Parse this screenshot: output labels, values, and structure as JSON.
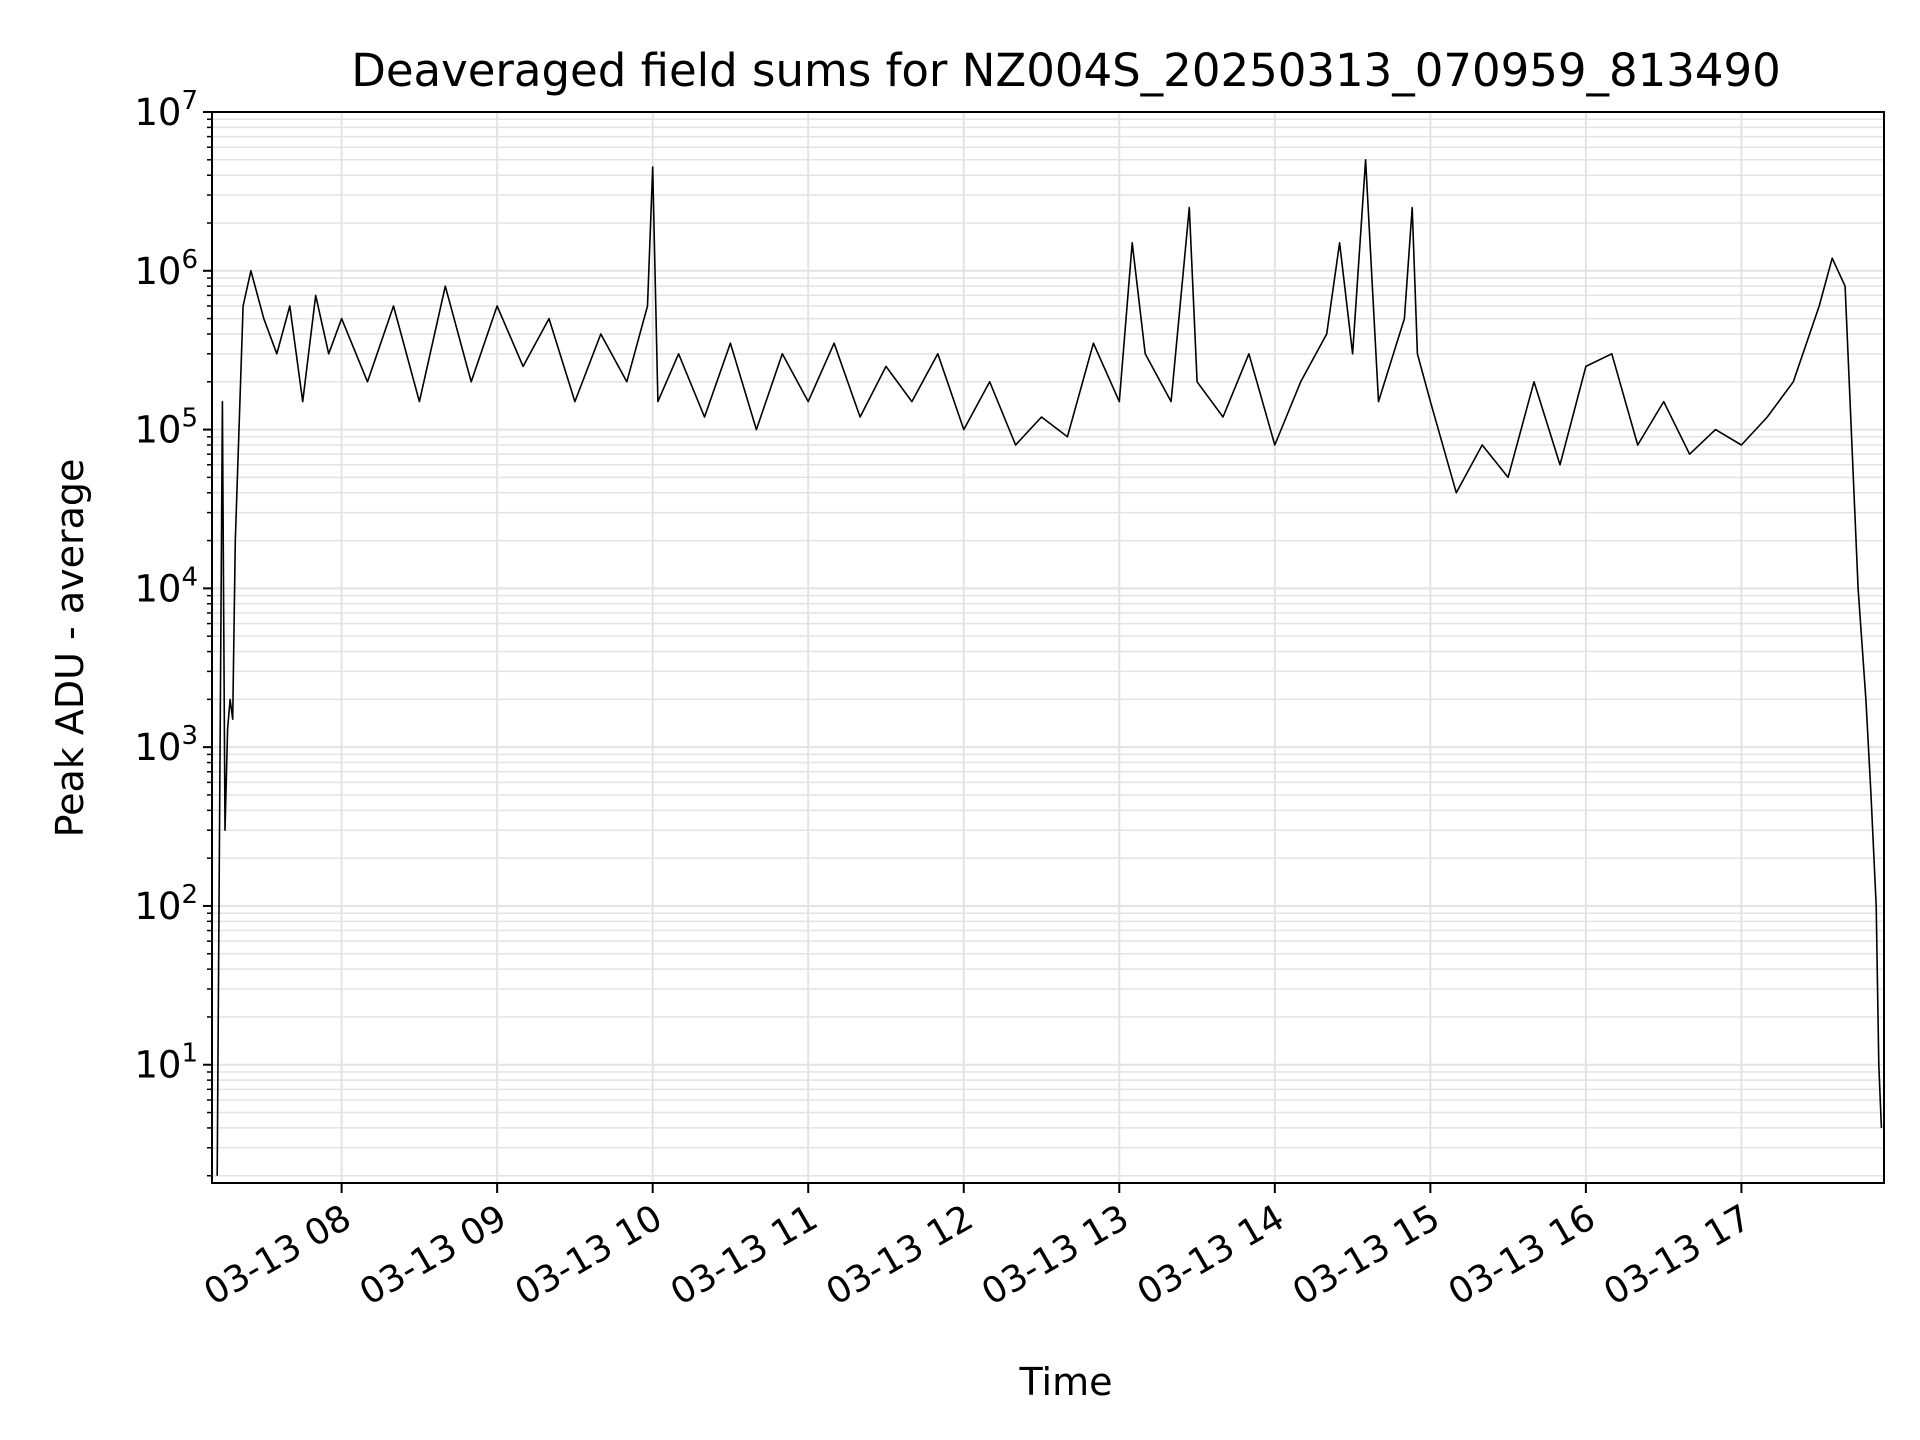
{
  "chart_data": {
    "type": "line",
    "title": "Deaveraged field sums for NZ004S_20250313_070959_813490",
    "xlabel": "Time",
    "ylabel": "Peak ADU - average",
    "y_scale": "log",
    "ylim": [
      1.8,
      10000000
    ],
    "y_tick_labels": [
      {
        "value": 10,
        "base": "10",
        "exp": "1"
      },
      {
        "value": 100,
        "base": "10",
        "exp": "2"
      },
      {
        "value": 1000,
        "base": "10",
        "exp": "3"
      },
      {
        "value": 10000,
        "base": "10",
        "exp": "4"
      },
      {
        "value": 100000,
        "base": "10",
        "exp": "5"
      },
      {
        "value": 1000000,
        "base": "10",
        "exp": "6"
      },
      {
        "value": 10000000,
        "base": "10",
        "exp": "7"
      }
    ],
    "xlim": [
      "2025-03-13 07:10",
      "2025-03-13 17:55"
    ],
    "x_ticks": [
      {
        "value": "2025-03-13 08:00",
        "label": "03-13 08"
      },
      {
        "value": "2025-03-13 09:00",
        "label": "03-13 09"
      },
      {
        "value": "2025-03-13 10:00",
        "label": "03-13 10"
      },
      {
        "value": "2025-03-13 11:00",
        "label": "03-13 11"
      },
      {
        "value": "2025-03-13 12:00",
        "label": "03-13 12"
      },
      {
        "value": "2025-03-13 13:00",
        "label": "03-13 13"
      },
      {
        "value": "2025-03-13 14:00",
        "label": "03-13 14"
      },
      {
        "value": "2025-03-13 15:00",
        "label": "03-13 15"
      },
      {
        "value": "2025-03-13 16:00",
        "label": "03-13 16"
      },
      {
        "value": "2025-03-13 17:00",
        "label": "03-13 17"
      }
    ],
    "grid": true,
    "line_color": "#000000",
    "grid_color": "#e3e3e3",
    "series": [
      {
        "x": [
          "2025-03-13 07:12",
          "2025-03-13 07:14",
          "2025-03-13 07:15",
          "2025-03-13 07:16",
          "2025-03-13 07:17",
          "2025-03-13 07:18",
          "2025-03-13 07:19",
          "2025-03-13 07:22",
          "2025-03-13 07:25",
          "2025-03-13 07:30",
          "2025-03-13 07:35",
          "2025-03-13 07:40",
          "2025-03-13 07:45",
          "2025-03-13 07:50",
          "2025-03-13 07:55",
          "2025-03-13 08:00",
          "2025-03-13 08:10",
          "2025-03-13 08:20",
          "2025-03-13 08:30",
          "2025-03-13 08:40",
          "2025-03-13 08:50",
          "2025-03-13 09:00",
          "2025-03-13 09:10",
          "2025-03-13 09:20",
          "2025-03-13 09:30",
          "2025-03-13 09:40",
          "2025-03-13 09:50",
          "2025-03-13 09:58",
          "2025-03-13 10:00",
          "2025-03-13 10:02",
          "2025-03-13 10:10",
          "2025-03-13 10:20",
          "2025-03-13 10:30",
          "2025-03-13 10:40",
          "2025-03-13 10:50",
          "2025-03-13 11:00",
          "2025-03-13 11:10",
          "2025-03-13 11:20",
          "2025-03-13 11:30",
          "2025-03-13 11:40",
          "2025-03-13 11:50",
          "2025-03-13 12:00",
          "2025-03-13 12:10",
          "2025-03-13 12:20",
          "2025-03-13 12:30",
          "2025-03-13 12:40",
          "2025-03-13 12:50",
          "2025-03-13 13:00",
          "2025-03-13 13:05",
          "2025-03-13 13:10",
          "2025-03-13 13:20",
          "2025-03-13 13:27",
          "2025-03-13 13:30",
          "2025-03-13 13:40",
          "2025-03-13 13:50",
          "2025-03-13 14:00",
          "2025-03-13 14:10",
          "2025-03-13 14:20",
          "2025-03-13 14:25",
          "2025-03-13 14:30",
          "2025-03-13 14:35",
          "2025-03-13 14:40",
          "2025-03-13 14:50",
          "2025-03-13 14:53",
          "2025-03-13 14:55",
          "2025-03-13 15:00",
          "2025-03-13 15:10",
          "2025-03-13 15:20",
          "2025-03-13 15:30",
          "2025-03-13 15:40",
          "2025-03-13 15:50",
          "2025-03-13 16:00",
          "2025-03-13 16:10",
          "2025-03-13 16:20",
          "2025-03-13 16:30",
          "2025-03-13 16:40",
          "2025-03-13 16:50",
          "2025-03-13 17:00",
          "2025-03-13 17:10",
          "2025-03-13 17:20",
          "2025-03-13 17:30",
          "2025-03-13 17:35",
          "2025-03-13 17:40",
          "2025-03-13 17:45",
          "2025-03-13 17:48",
          "2025-03-13 17:50",
          "2025-03-13 17:52",
          "2025-03-13 17:53",
          "2025-03-13 17:54"
        ],
        "y": [
          2,
          150000,
          300,
          1300,
          2000,
          1500,
          20000,
          600000,
          1000000,
          500000,
          300000,
          600000,
          150000,
          700000,
          300000,
          500000,
          200000,
          600000,
          150000,
          800000,
          200000,
          600000,
          250000,
          500000,
          150000,
          400000,
          200000,
          600000,
          4500000,
          150000,
          300000,
          120000,
          350000,
          100000,
          300000,
          150000,
          350000,
          120000,
          250000,
          150000,
          300000,
          100000,
          200000,
          80000,
          120000,
          90000,
          350000,
          150000,
          1500000,
          300000,
          150000,
          2500000,
          200000,
          120000,
          300000,
          80000,
          200000,
          400000,
          1500000,
          300000,
          5000000,
          150000,
          500000,
          2500000,
          300000,
          150000,
          40000,
          80000,
          50000,
          200000,
          60000,
          250000,
          300000,
          80000,
          150000,
          70000,
          100000,
          80000,
          120000,
          200000,
          600000,
          1200000,
          800000,
          10000,
          2000,
          500,
          100,
          10,
          4
        ]
      }
    ]
  }
}
